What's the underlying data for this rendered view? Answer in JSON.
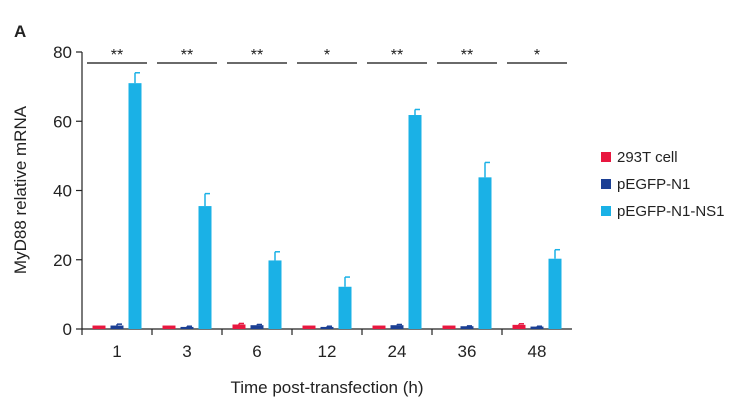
{
  "chart_data": {
    "type": "bar",
    "panel_label": "A",
    "title": "",
    "xlabel": "Time post-transfection (h)",
    "ylabel": "MyD88 relative mRNA",
    "ylim": [
      0,
      80
    ],
    "yticks": [
      0,
      20,
      40,
      60,
      80
    ],
    "categories": [
      "1",
      "3",
      "6",
      "12",
      "24",
      "36",
      "48"
    ],
    "series": [
      {
        "name": "293T cell",
        "color": "#e8173f",
        "values": [
          1.0,
          1.0,
          1.3,
          1.0,
          1.0,
          1.0,
          1.2
        ],
        "errors": [
          0.0,
          0.0,
          0.3,
          0.0,
          0.0,
          0.0,
          0.3
        ]
      },
      {
        "name": "pEGFP-N1",
        "color": "#1b3f94",
        "values": [
          1.0,
          0.6,
          1.1,
          0.6,
          1.1,
          0.8,
          0.7
        ],
        "errors": [
          0.4,
          0.2,
          0.2,
          0.2,
          0.2,
          0.1,
          0.1
        ]
      },
      {
        "name": "pEGFP-N1-NS1",
        "color": "#1ab1e6",
        "values": [
          71.0,
          35.5,
          19.8,
          12.2,
          61.8,
          43.8,
          20.3
        ],
        "errors": [
          3.0,
          3.6,
          2.5,
          2.8,
          1.6,
          4.3,
          2.6
        ]
      }
    ],
    "significance": [
      "**",
      "**",
      "**",
      "*",
      "**",
      "**",
      "*"
    ],
    "legend": {
      "position": "right"
    },
    "grid": false
  }
}
